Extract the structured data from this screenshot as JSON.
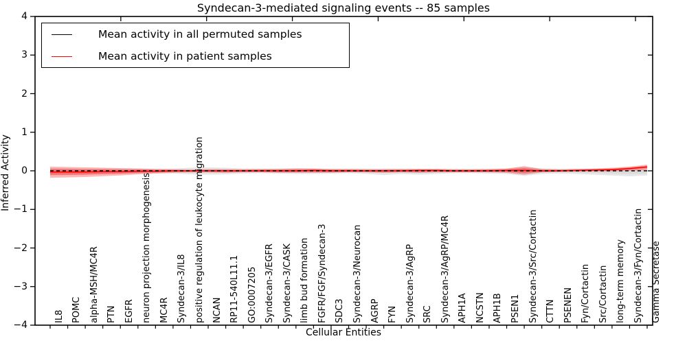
{
  "title": "Syndecan-3-mediated signaling events -- 85 samples",
  "axes": {
    "x_label": "Cellular Entities",
    "y_label": "Inferred Activity",
    "y_tick_values": [
      4,
      3,
      2,
      1,
      0,
      -1,
      -2,
      -3,
      -4
    ],
    "y_tick_labels": [
      "4",
      "3",
      "2",
      "1",
      "0",
      "−1",
      "−2",
      "−3",
      "−4"
    ]
  },
  "legend": {
    "items": [
      {
        "label": "Mean activity in all permuted samples",
        "color": "#000000"
      },
      {
        "label": "Mean activity in patient samples",
        "color": "#ff0000"
      }
    ]
  },
  "colors": {
    "permuted_band": "#c8c8c8",
    "patient_band": "#ff0000",
    "permuted_mean_line": "#000000",
    "patient_mean_line": "#ff0000",
    "frame": "#000000",
    "background": "#ffffff"
  },
  "chart_data": {
    "type": "area",
    "title": "Syndecan-3-mediated signaling events -- 85 samples",
    "xlabel": "Cellular Entities",
    "ylabel": "Inferred Activity",
    "ylim": [
      -4,
      4
    ],
    "grid": false,
    "legend_position": "upper left",
    "inner_band_scale": 0.55,
    "categories": [
      "IL8",
      "POMC",
      "alpha-MSH/MC4R",
      "PTN",
      "EGFR",
      "neuron projection morphogenesis",
      "MC4R",
      "Syndecan-3/IL8",
      "positive regulation of leukocyte migration",
      "NCAN",
      "RP11-540L11.1",
      "GO:0007205",
      "Syndecan-3/EGFR",
      "Syndecan-3/CASK",
      "limb bud formation",
      "FGFR/FGF/Syndecan-3",
      "SDC3",
      "Syndecan-3/Neurocan",
      "AGRP",
      "FYN",
      "Syndecan-3/AgRP",
      "SRC",
      "Syndecan-3/AgRP/MC4R",
      "APH1A",
      "NCSTN",
      "APH1B",
      "PSEN1",
      "Syndecan-3/Src/Cortactin",
      "CTTN",
      "PSENEN",
      "Fyn/Cortactin",
      "Src/Cortactin",
      "long-term memory",
      "Syndecan-3/Fyn/Cortactin",
      "Gamma Secretase"
    ],
    "series": [
      {
        "name": "Permuted samples band",
        "role": "band",
        "color": "#c8c8c8",
        "top": [
          0.07,
          0.07,
          0.06,
          0.06,
          0.06,
          0.06,
          0.05,
          0.06,
          0.08,
          0.09,
          0.08,
          0.06,
          0.05,
          0.06,
          0.07,
          0.06,
          0.05,
          0.05,
          0.06,
          0.06,
          0.05,
          0.05,
          0.05,
          0.05,
          0.05,
          0.05,
          0.06,
          0.1,
          0.06,
          0.05,
          0.05,
          0.05,
          0.05,
          0.05,
          0.04
        ],
        "bottom": [
          -0.1,
          -0.1,
          -0.09,
          -0.08,
          -0.07,
          -0.07,
          -0.06,
          -0.07,
          -0.09,
          -0.1,
          -0.09,
          -0.07,
          -0.06,
          -0.07,
          -0.08,
          -0.08,
          -0.07,
          -0.06,
          -0.08,
          -0.11,
          -0.08,
          -0.1,
          -0.08,
          -0.06,
          -0.06,
          -0.07,
          -0.08,
          -0.13,
          -0.08,
          -0.07,
          -0.08,
          -0.1,
          -0.12,
          -0.14,
          -0.12
        ]
      },
      {
        "name": "Patient samples band",
        "role": "band",
        "color": "#ff0000",
        "top": [
          0.11,
          0.1,
          0.09,
          0.08,
          0.07,
          0.06,
          0.05,
          0.04,
          0.03,
          0.04,
          0.04,
          0.04,
          0.05,
          0.05,
          0.06,
          0.06,
          0.05,
          0.05,
          0.04,
          0.04,
          0.05,
          0.05,
          0.05,
          0.04,
          0.04,
          0.05,
          0.06,
          0.12,
          0.05,
          0.04,
          0.05,
          0.06,
          0.08,
          0.11,
          0.16
        ],
        "bottom": [
          -0.18,
          -0.17,
          -0.16,
          -0.14,
          -0.12,
          -0.09,
          -0.07,
          -0.05,
          -0.04,
          -0.04,
          -0.05,
          -0.04,
          -0.04,
          -0.05,
          -0.05,
          -0.05,
          -0.05,
          -0.04,
          -0.04,
          -0.05,
          -0.04,
          -0.05,
          -0.04,
          -0.04,
          -0.04,
          -0.04,
          -0.05,
          -0.1,
          -0.04,
          -0.03,
          -0.02,
          -0.02,
          -0.01,
          0.0,
          0.02
        ]
      },
      {
        "name": "Mean activity in all permuted samples",
        "role": "line",
        "style": "dashed",
        "color": "#000000",
        "values": [
          0,
          0,
          0,
          0,
          0,
          0,
          0,
          0,
          0,
          0,
          0,
          0,
          0,
          0,
          0,
          0,
          0,
          0,
          0,
          0,
          0,
          0,
          0,
          0,
          0,
          0,
          0,
          0,
          0,
          0,
          0,
          0,
          0,
          0,
          0
        ]
      },
      {
        "name": "Mean activity in patient samples",
        "role": "line",
        "style": "solid",
        "color": "#ff0000",
        "values": [
          -0.03,
          -0.03,
          -0.03,
          -0.02,
          -0.02,
          -0.01,
          -0.01,
          0.0,
          0.0,
          0.0,
          0.0,
          0.0,
          0.0,
          0.0,
          0.0,
          0.01,
          0.0,
          0.0,
          0.0,
          0.0,
          0.0,
          0.01,
          0.01,
          0.0,
          0.0,
          0.0,
          0.01,
          0.01,
          0.0,
          0.0,
          0.01,
          0.02,
          0.03,
          0.06,
          0.1
        ]
      }
    ]
  }
}
